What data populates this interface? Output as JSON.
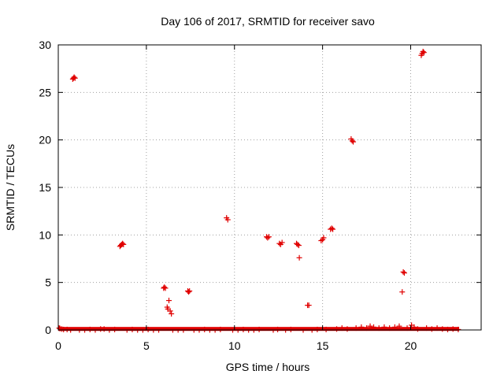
{
  "chart_data": {
    "type": "scatter",
    "title": "Day 106 of 2017, SRMTID for receiver savo",
    "xlabel": "GPS time / hours",
    "ylabel": "SRMTID / TECUs",
    "xlim": [
      0,
      24
    ],
    "ylim": [
      0,
      30
    ],
    "xticks": [
      0,
      5,
      10,
      15,
      20
    ],
    "yticks": [
      0,
      5,
      10,
      15,
      20,
      25,
      30
    ],
    "grid": true,
    "marker": "plus",
    "marker_color": "#e00000",
    "series": [
      {
        "points": [
          [
            0.05,
            0.2
          ],
          [
            0.1,
            0.15
          ],
          [
            0.2,
            0.1
          ],
          [
            0.3,
            0.05
          ],
          [
            0.5,
            0.05
          ],
          [
            0.7,
            0.0
          ],
          [
            0.82,
            26.4
          ],
          [
            0.86,
            26.5
          ],
          [
            0.9,
            26.6
          ],
          [
            0.95,
            26.5
          ],
          [
            1.2,
            0.0
          ],
          [
            1.5,
            0.0
          ],
          [
            1.8,
            0.05
          ],
          [
            2.1,
            0.0
          ],
          [
            2.4,
            0.1
          ],
          [
            2.6,
            0.1
          ],
          [
            2.9,
            0.0
          ],
          [
            3.2,
            0.05
          ],
          [
            3.5,
            8.8
          ],
          [
            3.55,
            8.9
          ],
          [
            3.6,
            9.0
          ],
          [
            3.65,
            9.1
          ],
          [
            3.7,
            9.0
          ],
          [
            3.9,
            0.0
          ],
          [
            4.2,
            0.05
          ],
          [
            4.5,
            0.0
          ],
          [
            4.8,
            0.0
          ],
          [
            5.1,
            0.05
          ],
          [
            5.4,
            0.0
          ],
          [
            5.7,
            0.0
          ],
          [
            5.98,
            4.4
          ],
          [
            6.02,
            4.5
          ],
          [
            6.08,
            4.4
          ],
          [
            6.18,
            2.4
          ],
          [
            6.22,
            2.2
          ],
          [
            6.28,
            3.1
          ],
          [
            6.35,
            2.0
          ],
          [
            6.42,
            1.7
          ],
          [
            6.5,
            0.0
          ],
          [
            6.8,
            0.0
          ],
          [
            7.1,
            0.0
          ],
          [
            7.35,
            4.1
          ],
          [
            7.4,
            4.0
          ],
          [
            7.45,
            4.1
          ],
          [
            7.7,
            0.0
          ],
          [
            8.0,
            0.0
          ],
          [
            8.3,
            0.05
          ],
          [
            8.6,
            0.0
          ],
          [
            8.9,
            0.0
          ],
          [
            9.2,
            0.05
          ],
          [
            9.55,
            11.8
          ],
          [
            9.62,
            11.6
          ],
          [
            9.9,
            0.0
          ],
          [
            10.2,
            0.0
          ],
          [
            10.5,
            0.05
          ],
          [
            10.8,
            0.0
          ],
          [
            11.1,
            0.0
          ],
          [
            11.4,
            0.05
          ],
          [
            11.82,
            9.8
          ],
          [
            11.88,
            9.7
          ],
          [
            11.95,
            9.8
          ],
          [
            12.2,
            0.0
          ],
          [
            12.45,
            0.05
          ],
          [
            12.55,
            9.1
          ],
          [
            12.62,
            9.0
          ],
          [
            12.7,
            9.2
          ],
          [
            12.9,
            0.0
          ],
          [
            13.2,
            0.05
          ],
          [
            13.52,
            9.1
          ],
          [
            13.58,
            9.0
          ],
          [
            13.65,
            8.9
          ],
          [
            13.68,
            7.6
          ],
          [
            13.9,
            0.0
          ],
          [
            14.15,
            2.6
          ],
          [
            14.22,
            2.6
          ],
          [
            14.4,
            0.0
          ],
          [
            14.7,
            0.05
          ],
          [
            14.92,
            9.4
          ],
          [
            15.0,
            9.5
          ],
          [
            15.06,
            9.7
          ],
          [
            15.2,
            0.05
          ],
          [
            15.45,
            10.6
          ],
          [
            15.52,
            10.7
          ],
          [
            15.58,
            10.6
          ],
          [
            15.8,
            0.1
          ],
          [
            16.1,
            0.2
          ],
          [
            16.4,
            0.1
          ],
          [
            16.62,
            20.1
          ],
          [
            16.68,
            19.9
          ],
          [
            16.74,
            19.8
          ],
          [
            16.9,
            0.2
          ],
          [
            17.2,
            0.3
          ],
          [
            17.5,
            0.2
          ],
          [
            17.7,
            0.4
          ],
          [
            17.9,
            0.3
          ],
          [
            18.2,
            0.2
          ],
          [
            18.5,
            0.3
          ],
          [
            18.8,
            0.2
          ],
          [
            19.1,
            0.3
          ],
          [
            19.35,
            0.4
          ],
          [
            19.52,
            4.0
          ],
          [
            19.58,
            6.1
          ],
          [
            19.64,
            6.0
          ],
          [
            19.8,
            0.2
          ],
          [
            20.05,
            0.5
          ],
          [
            20.2,
            0.3
          ],
          [
            20.4,
            0.1
          ],
          [
            20.6,
            28.9
          ],
          [
            20.65,
            29.1
          ],
          [
            20.7,
            29.3
          ],
          [
            20.75,
            29.2
          ],
          [
            20.9,
            0.2
          ],
          [
            21.2,
            0.1
          ],
          [
            21.5,
            0.2
          ],
          [
            21.8,
            0.1
          ],
          [
            22.1,
            0.05
          ],
          [
            22.4,
            0.1
          ],
          [
            22.7,
            0.05
          ]
        ]
      }
    ]
  }
}
